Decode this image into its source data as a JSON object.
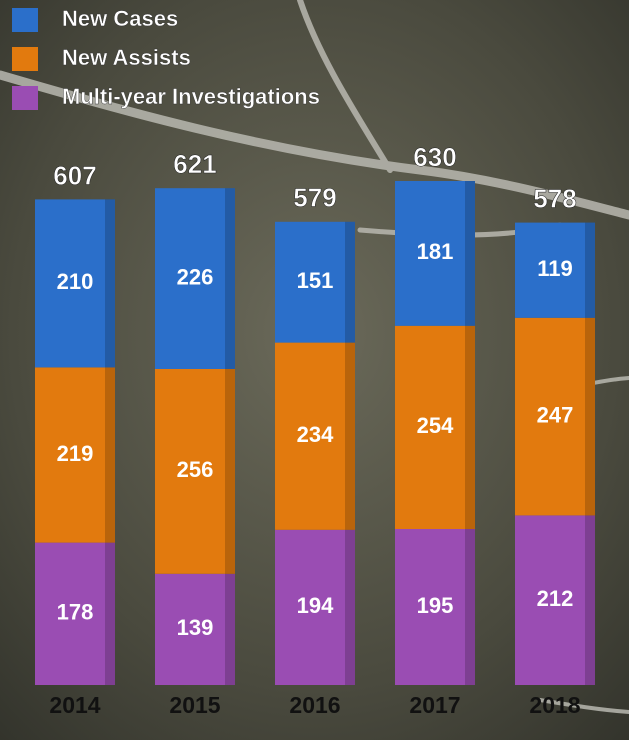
{
  "chart_data": {
    "type": "stacked-bar",
    "categories": [
      "2014",
      "2015",
      "2016",
      "2017",
      "2018"
    ],
    "series": [
      {
        "name": "Multi-year Investigations",
        "color": "#9a4db3",
        "values": [
          178,
          139,
          194,
          195,
          212
        ]
      },
      {
        "name": "New Assists",
        "color": "#e27a0e",
        "values": [
          219,
          256,
          234,
          254,
          247
        ]
      },
      {
        "name": "New Cases",
        "color": "#2b6fca",
        "values": [
          210,
          226,
          151,
          181,
          119
        ]
      }
    ],
    "totals": [
      607,
      621,
      579,
      630,
      578
    ]
  }
}
